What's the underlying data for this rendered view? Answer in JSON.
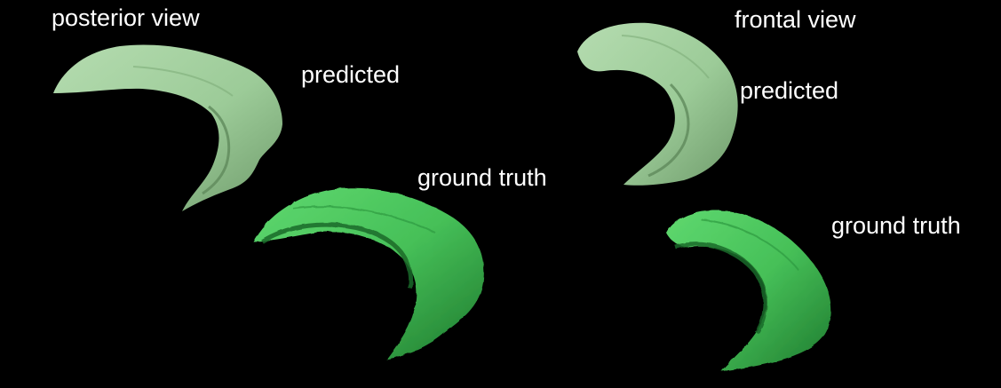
{
  "labels": {
    "posterior_view": "posterior view",
    "frontal_view": "frontal view",
    "posterior_predicted": "predicted",
    "posterior_ground_truth": "ground truth",
    "frontal_predicted": "predicted",
    "frontal_ground_truth": "ground truth"
  },
  "colors": {
    "background": "#000000",
    "text": "#ffffff",
    "predicted_fill": "#a3cf9f",
    "predicted_shadow": "#6e9a6a",
    "ground_truth_fill": "#4cc85e",
    "ground_truth_shadow": "#1f7d30"
  }
}
